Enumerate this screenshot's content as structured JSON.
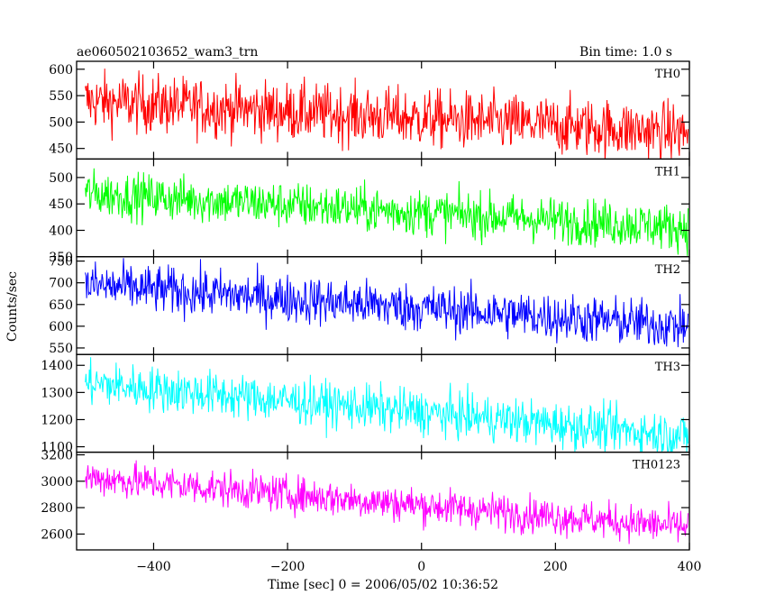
{
  "chart_data": {
    "type": "line",
    "title": "ae060502103652_wam3_trn",
    "bin_time_label": "Bin time: 1.0 s",
    "xlabel": "Time [sec] 0 = 2006/05/02 10:36:52",
    "ylabel": "Counts/sec",
    "xlim": [
      -515,
      400
    ],
    "xticks": [
      -400,
      -200,
      0,
      200,
      400
    ],
    "grid": false,
    "panels": [
      {
        "name": "TH0",
        "color": "#ff0000",
        "ylim": [
          430,
          615
        ],
        "yticks": [
          450,
          500,
          550,
          600
        ],
        "series": {
          "start_level": 540,
          "end_level": 480,
          "noise": 28
        }
      },
      {
        "name": "TH1",
        "color": "#00ff00",
        "ylim": [
          350,
          535
        ],
        "yticks": [
          350,
          400,
          450,
          500
        ],
        "series": {
          "start_level": 470,
          "end_level": 405,
          "noise": 22
        }
      },
      {
        "name": "TH2",
        "color": "#0000ff",
        "ylim": [
          535,
          760
        ],
        "yticks": [
          550,
          600,
          650,
          700,
          750
        ],
        "series": {
          "start_level": 695,
          "end_level": 600,
          "noise": 28
        }
      },
      {
        "name": "TH3",
        "color": "#00ffff",
        "ylim": [
          1080,
          1440
        ],
        "yticks": [
          1100,
          1200,
          1300,
          1400
        ],
        "series": {
          "start_level": 1335,
          "end_level": 1140,
          "noise": 42
        }
      },
      {
        "name": "TH0123",
        "color": "#ff00ff",
        "ylim": [
          2480,
          3220
        ],
        "yticks": [
          2600,
          2800,
          3000,
          3200
        ],
        "series": {
          "start_level": 3030,
          "end_level": 2650,
          "noise": 70
        }
      }
    ]
  }
}
